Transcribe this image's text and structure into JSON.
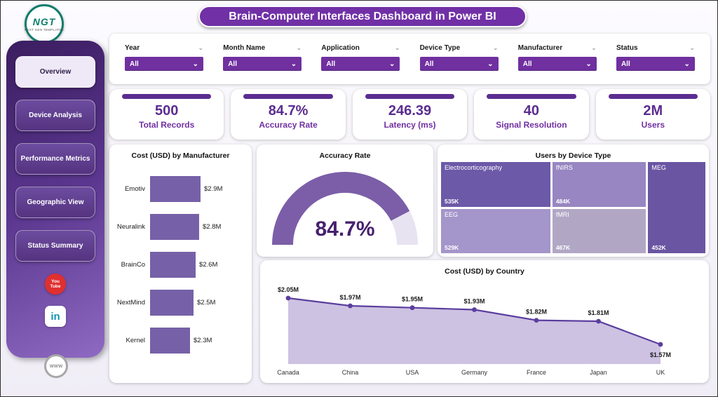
{
  "header": {
    "title": "Brain-Computer Interfaces Dashboard in Power BI"
  },
  "logo": {
    "text": "NGT",
    "subtext": "NEXT GEN TEMPLATES"
  },
  "sidebar": {
    "items": [
      {
        "label": "Overview",
        "active": true
      },
      {
        "label": "Device Analysis",
        "active": false
      },
      {
        "label": "Performance Metrics",
        "active": false
      },
      {
        "label": "Geographic View",
        "active": false
      },
      {
        "label": "Status Summary",
        "active": false
      }
    ],
    "social": {
      "youtube": "You\nTube",
      "linkedin": "in",
      "website": "WWW"
    }
  },
  "filters": [
    {
      "label": "Year",
      "value": "All"
    },
    {
      "label": "Month Name",
      "value": "All"
    },
    {
      "label": "Application",
      "value": "All"
    },
    {
      "label": "Device Type",
      "value": "All"
    },
    {
      "label": "Manufacturer",
      "value": "All"
    },
    {
      "label": "Status",
      "value": "All"
    }
  ],
  "kpis": [
    {
      "value": "500",
      "label": "Total Records"
    },
    {
      "value": "84.7%",
      "label": "Accuracy Rate"
    },
    {
      "value": "246.39",
      "label": "Latency (ms)"
    },
    {
      "value": "40",
      "label": "Signal Resolution"
    },
    {
      "value": "2M",
      "label": "Users"
    }
  ],
  "chart_data": [
    {
      "type": "bar",
      "title": "Cost (USD) by Manufacturer",
      "orientation": "horizontal",
      "categories": [
        "Emotiv",
        "Neuralink",
        "BrainCo",
        "NextMind",
        "Kernel"
      ],
      "values": [
        2.9,
        2.8,
        2.6,
        2.5,
        2.3
      ],
      "labels": [
        "$2.9M",
        "$2.8M",
        "$2.6M",
        "$2.5M",
        "$2.3M"
      ],
      "unit": "USD millions"
    },
    {
      "type": "gauge",
      "title": "Accuracy Rate",
      "value": 84.7,
      "label": "84.7%",
      "min": 0,
      "max": 100
    },
    {
      "type": "treemap",
      "title": "Users by Device Type",
      "items": [
        {
          "name": "Electrocorticography",
          "value": "535K",
          "color": "#6C59A8"
        },
        {
          "name": "fNIRS",
          "value": "484K",
          "color": "#9786C1"
        },
        {
          "name": "MEG",
          "value": "452K",
          "color": "#6A55A2"
        },
        {
          "name": "EEG",
          "value": "529K",
          "color": "#A495CA"
        },
        {
          "name": "fMRI",
          "value": "467K",
          "color": "#B1A7C5"
        }
      ]
    },
    {
      "type": "area",
      "title": "Cost (USD) by Country",
      "categories": [
        "Canada",
        "China",
        "USA",
        "Germany",
        "France",
        "Japan",
        "UK"
      ],
      "values": [
        2.05,
        1.97,
        1.95,
        1.93,
        1.82,
        1.81,
        1.57
      ],
      "labels": [
        "$2.05M",
        "$1.97M",
        "$1.95M",
        "$1.93M",
        "$1.82M",
        "$1.81M",
        "$1.57M"
      ],
      "unit": "USD millions"
    }
  ],
  "colors": {
    "primary": "#7130A6",
    "dark_purple": "#5B2D90",
    "accent_text": "#7030A0",
    "bar": "#7661A8",
    "gauge_fill": "#7B5EA7",
    "gauge_rest": "#E8E3F1",
    "gauge_text": "#46216E",
    "area_fill": "#CDC2E2",
    "area_line": "#5B3E9E",
    "youtube_red": "#E02F2F",
    "linkedin_blue": "#1596B4"
  }
}
